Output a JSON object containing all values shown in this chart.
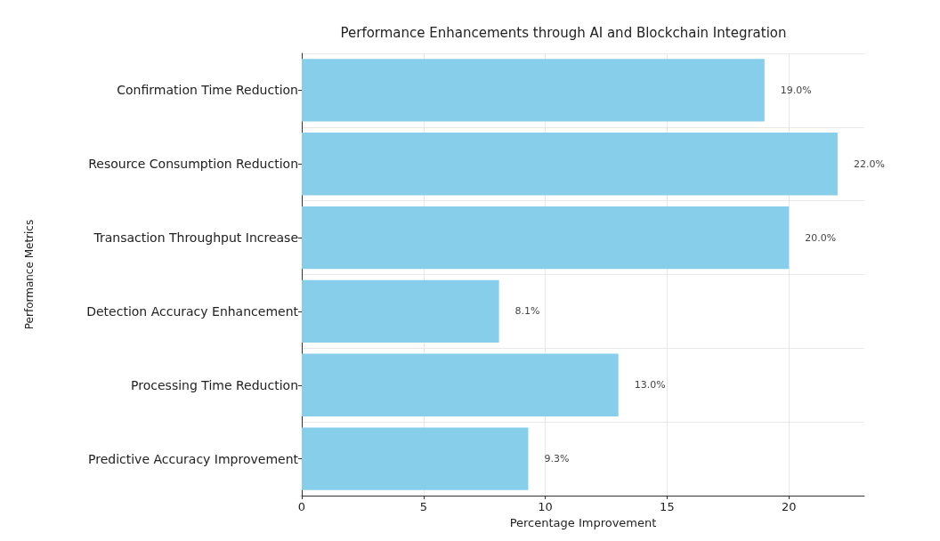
{
  "chart_data": {
    "type": "bar",
    "orientation": "horizontal",
    "title": "Performance Enhancements through AI and Blockchain Integration",
    "xlabel": "Percentage Improvement",
    "ylabel": "Performance Metrics",
    "categories": [
      "Confirmation Time Reduction",
      "Resource Consumption Reduction",
      "Transaction Throughput Increase",
      "Detection Accuracy Enhancement",
      "Processing Time Reduction",
      "Predictive Accuracy Improvement"
    ],
    "values": [
      19.0,
      22.0,
      20.0,
      8.1,
      13.0,
      9.3
    ],
    "value_labels": [
      "19.0%",
      "22.0%",
      "20.0%",
      "8.1%",
      "13.0%",
      "9.3%"
    ],
    "color": "#87ceeb",
    "xlim": [
      0,
      23.1
    ],
    "xticks": [
      0,
      5,
      10,
      15,
      20
    ],
    "grid": true
  }
}
